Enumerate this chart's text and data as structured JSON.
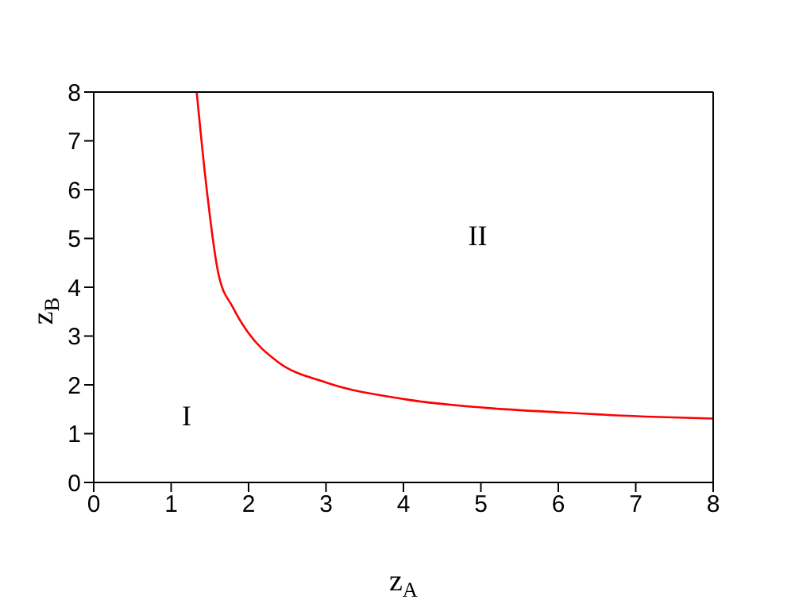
{
  "chart_data": {
    "type": "line",
    "xlabel": "z$_{A}$",
    "ylabel": "z$_{B}$",
    "series": [
      {
        "color": "#ff0000",
        "x": [
          1.33,
          1.44,
          1.61,
          1.8,
          1.99,
          2.37,
          3.0,
          4.0,
          5.05,
          6.09,
          7.13,
          8
        ],
        "values": [
          8,
          6.28,
          4.28,
          3.58,
          3.08,
          2.48,
          2.05,
          1.71,
          1.53,
          1.43,
          1.35,
          1.31
        ]
      }
    ],
    "xlim": [
      0,
      8
    ],
    "ylim": [
      0,
      8
    ],
    "xticks": [
      0,
      1,
      2,
      3,
      4,
      5,
      6,
      7,
      8
    ],
    "yticks": [
      0,
      1,
      2,
      3,
      4,
      5,
      6,
      7,
      8
    ],
    "annotations": [
      "I",
      "II"
    ],
    "line_style": "solid"
  }
}
